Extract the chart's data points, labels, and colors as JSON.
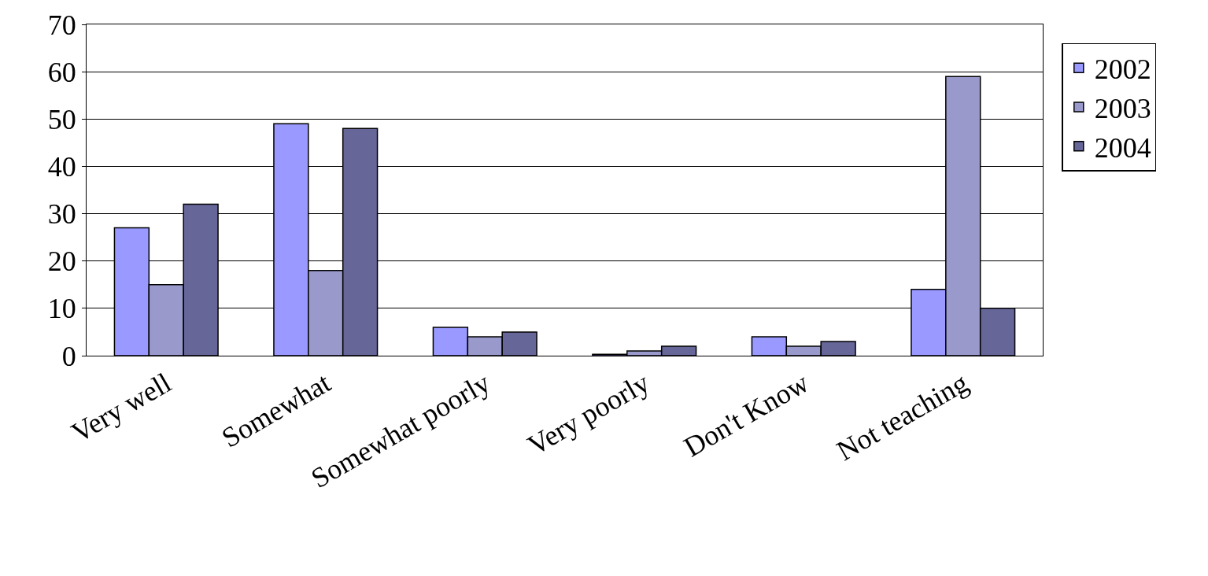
{
  "chart_data": {
    "type": "bar",
    "categories": [
      "Very well",
      "Somewhat",
      "Somewhat poorly",
      "Very poorly",
      "Don't Know",
      "Not teaching"
    ],
    "series": [
      {
        "name": "2002",
        "color": "#9999ff",
        "values": [
          27,
          49,
          6,
          0.3,
          4,
          14
        ]
      },
      {
        "name": "2003",
        "color": "#9999cc",
        "values": [
          15,
          18,
          4,
          1,
          2,
          59
        ]
      },
      {
        "name": "2004",
        "color": "#666699",
        "values": [
          32,
          48,
          5,
          2,
          3,
          10
        ]
      }
    ],
    "ylim": [
      0,
      70
    ],
    "yticks": [
      0,
      10,
      20,
      30,
      40,
      50,
      60,
      70
    ],
    "grid": "y",
    "legend": "right"
  }
}
